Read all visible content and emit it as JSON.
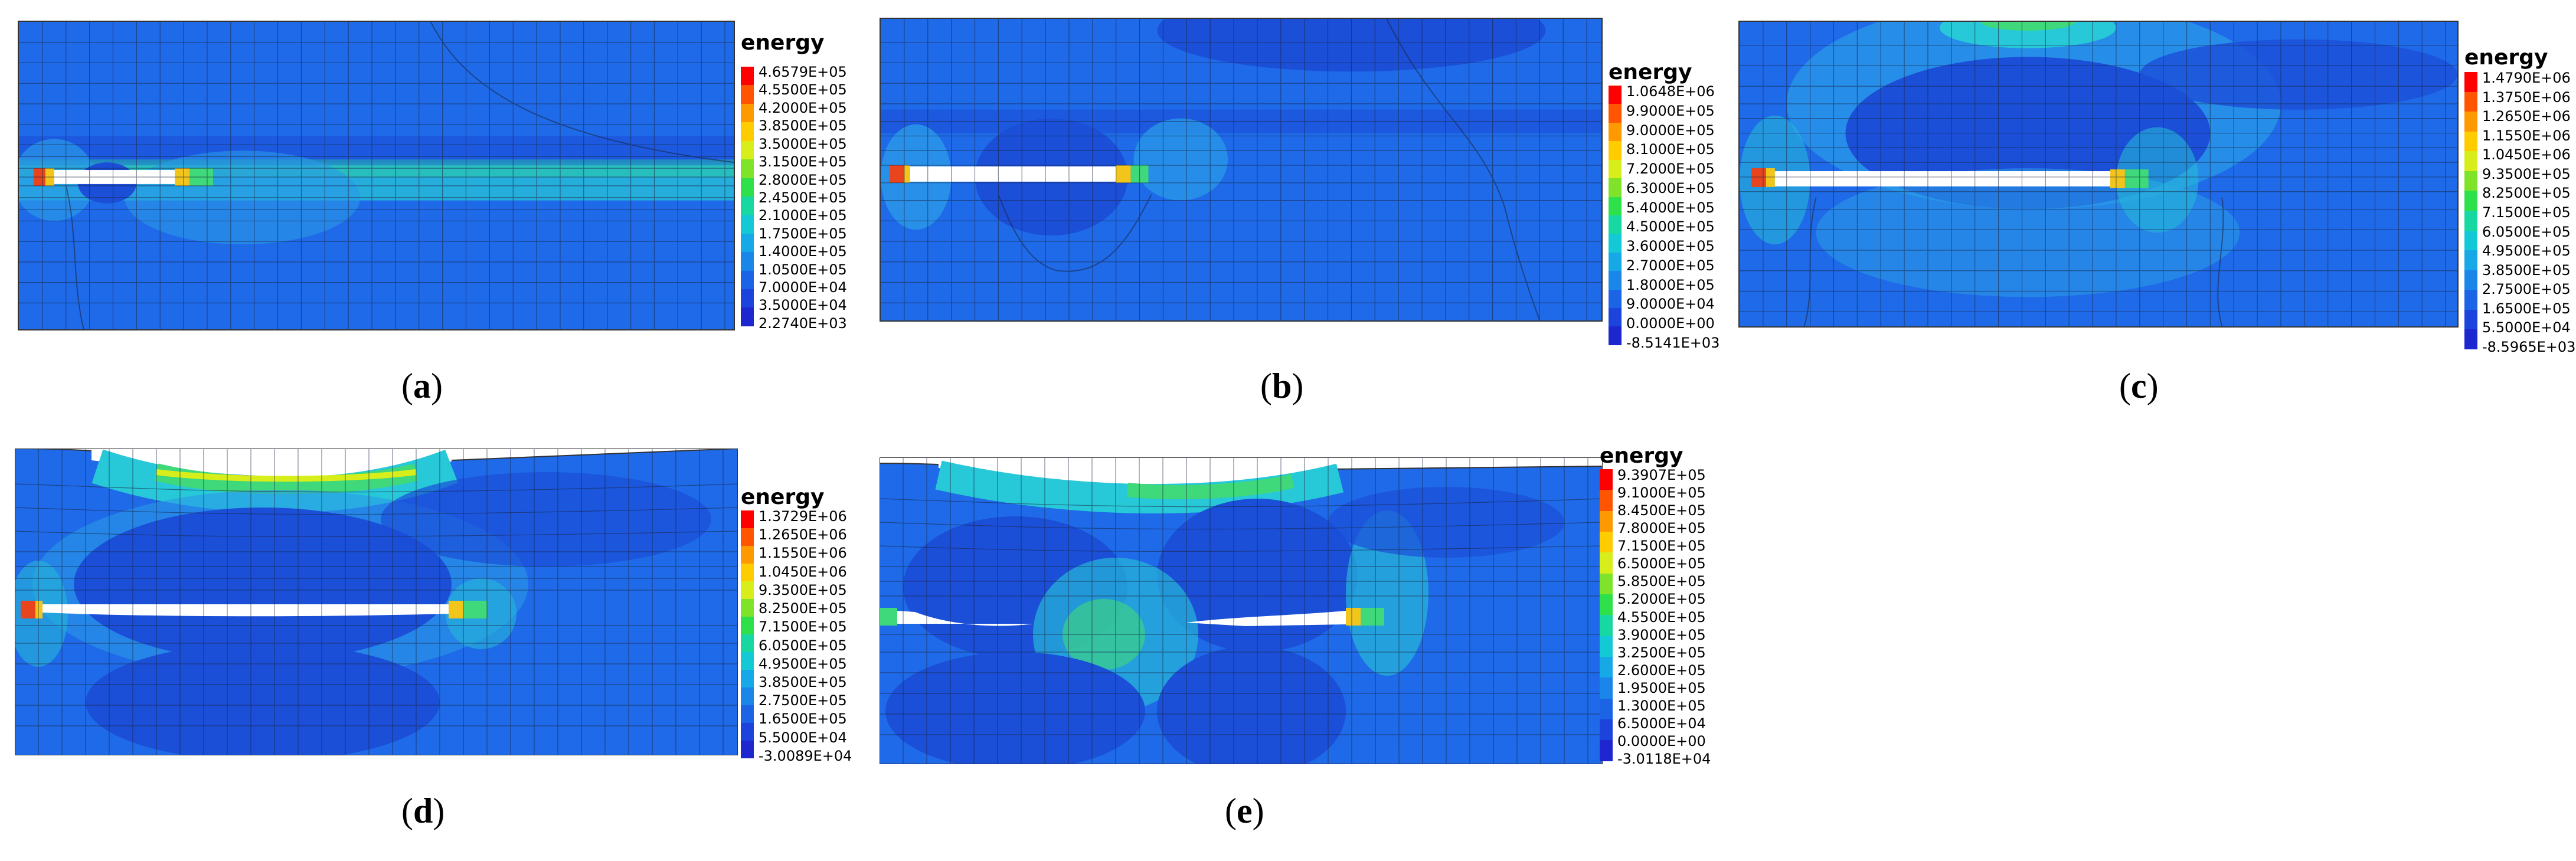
{
  "colors": {
    "background_field": "#1e6ae8",
    "deep_field": "#1b4fd8",
    "light_field": "#2a9ae8",
    "cyan_field": "#27c8d8",
    "green_field": "#3fd87a",
    "hot": "#e8451e",
    "yellow": "#f2c51b",
    "mesh": "#1a2440"
  },
  "scale_colors": [
    "#ff0000",
    "#ff5500",
    "#ff9900",
    "#ffcc00",
    "#d8ee1a",
    "#7fe32a",
    "#2ee04a",
    "#16d8a0",
    "#14c9d6",
    "#17a8e8",
    "#1a86ea",
    "#1c64e6",
    "#1c44dc",
    "#1e26d0"
  ],
  "panels": [
    {
      "id": "a",
      "caption_letter": "a",
      "legend_title": "energy",
      "legend_values": [
        "4.6579E+05",
        "4.5500E+05",
        "4.2000E+05",
        "3.8500E+05",
        "3.5000E+05",
        "3.1500E+05",
        "2.8000E+05",
        "2.4500E+05",
        "2.1000E+05",
        "1.7500E+05",
        "1.4000E+05",
        "1.0500E+05",
        "7.0000E+04",
        "3.5000E+04",
        "2.2740E+03"
      ]
    },
    {
      "id": "b",
      "caption_letter": "b",
      "legend_title": "energy",
      "legend_values": [
        "1.0648E+06",
        "9.9000E+05",
        "9.0000E+05",
        "8.1000E+05",
        "7.2000E+05",
        "6.3000E+05",
        "5.4000E+05",
        "4.5000E+05",
        "3.6000E+05",
        "2.7000E+05",
        "1.8000E+05",
        "9.0000E+04",
        "0.0000E+00",
        "-8.5141E+03"
      ]
    },
    {
      "id": "c",
      "caption_letter": "c",
      "legend_title": "energy",
      "legend_values": [
        "1.4790E+06",
        "1.3750E+06",
        "1.2650E+06",
        "1.1550E+06",
        "1.0450E+06",
        "9.3500E+05",
        "8.2500E+05",
        "7.1500E+05",
        "6.0500E+05",
        "4.9500E+05",
        "3.8500E+05",
        "2.7500E+05",
        "1.6500E+05",
        "5.5000E+04",
        "-8.5965E+03"
      ]
    },
    {
      "id": "d",
      "caption_letter": "d",
      "legend_title": "energy",
      "legend_values": [
        "1.3729E+06",
        "1.2650E+06",
        "1.1550E+06",
        "1.0450E+06",
        "9.3500E+05",
        "8.2500E+05",
        "7.1500E+05",
        "6.0500E+05",
        "4.9500E+05",
        "3.8500E+05",
        "2.7500E+05",
        "1.6500E+05",
        "5.5000E+04",
        "-3.0089E+04"
      ]
    },
    {
      "id": "e",
      "caption_letter": "e",
      "legend_title": "energy",
      "legend_values": [
        "9.3907E+05",
        "9.1000E+05",
        "8.4500E+05",
        "7.8000E+05",
        "7.1500E+05",
        "6.5000E+05",
        "5.8500E+05",
        "5.2000E+05",
        "4.5500E+05",
        "3.9000E+05",
        "3.2500E+05",
        "2.6000E+05",
        "1.9500E+05",
        "1.3000E+05",
        "6.5000E+04",
        "0.0000E+00",
        "-3.0118E+04"
      ]
    }
  ]
}
